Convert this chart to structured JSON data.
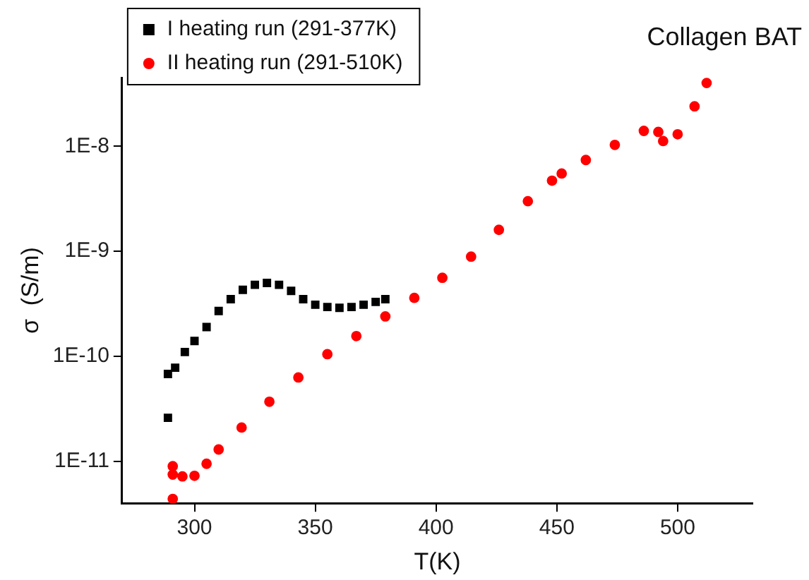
{
  "chart_data": {
    "type": "scatter",
    "title": "Collagen BAT",
    "xlabel": "T(K)",
    "ylabel": "σ  (S/m)",
    "log": "y",
    "grid": false,
    "legend": "top left",
    "xlim": [
      270,
      531
    ],
    "xticks": [
      300,
      350,
      400,
      450,
      500
    ],
    "ylim": [
      4e-12,
      4.5e-08
    ],
    "yticks": [
      {
        "value": 1e-11,
        "label": "1E-11"
      },
      {
        "value": 1e-10,
        "label": "1E-10"
      },
      {
        "value": 1e-09,
        "label": "1E-9"
      },
      {
        "value": 1e-08,
        "label": "1E-8"
      }
    ],
    "series": [
      {
        "name": "I heating run (291-377K)",
        "color": "#000000",
        "marker": "square",
        "x": [
          289,
          289,
          292,
          296,
          300,
          305,
          310,
          315,
          320,
          325,
          330,
          335,
          340,
          345,
          350,
          355,
          360,
          365,
          370,
          375,
          379
        ],
        "values": [
          2.6e-11,
          6.8e-11,
          7.8e-11,
          1.1e-10,
          1.4e-10,
          1.9e-10,
          2.7e-10,
          3.5e-10,
          4.3e-10,
          4.8e-10,
          5e-10,
          4.8e-10,
          4.2e-10,
          3.5e-10,
          3.1e-10,
          2.95e-10,
          2.9e-10,
          2.95e-10,
          3.1e-10,
          3.3e-10,
          3.5e-10
        ]
      },
      {
        "name": "II heating run (291-510K)",
        "color": "#ff0000",
        "marker": "circle",
        "x": [
          291,
          291,
          291,
          295,
          300,
          305,
          310,
          319.5,
          331,
          343,
          355,
          367,
          379,
          391,
          402.6,
          414.5,
          426,
          438,
          448,
          452,
          462,
          474,
          486,
          492,
          494,
          500,
          507,
          512
        ],
        "values": [
          4.4e-12,
          9e-12,
          7.5e-12,
          7.2e-12,
          7.3e-12,
          9.5e-12,
          1.3e-11,
          2.1e-11,
          3.7e-11,
          6.3e-11,
          1.05e-10,
          1.56e-10,
          2.4e-10,
          3.6e-10,
          5.6e-10,
          8.9e-10,
          1.6e-09,
          3e-09,
          4.7e-09,
          5.5e-09,
          7.4e-09,
          1.03e-08,
          1.4e-08,
          1.37e-08,
          1.12e-08,
          1.3e-08,
          2.4e-08,
          4e-08
        ]
      }
    ]
  }
}
